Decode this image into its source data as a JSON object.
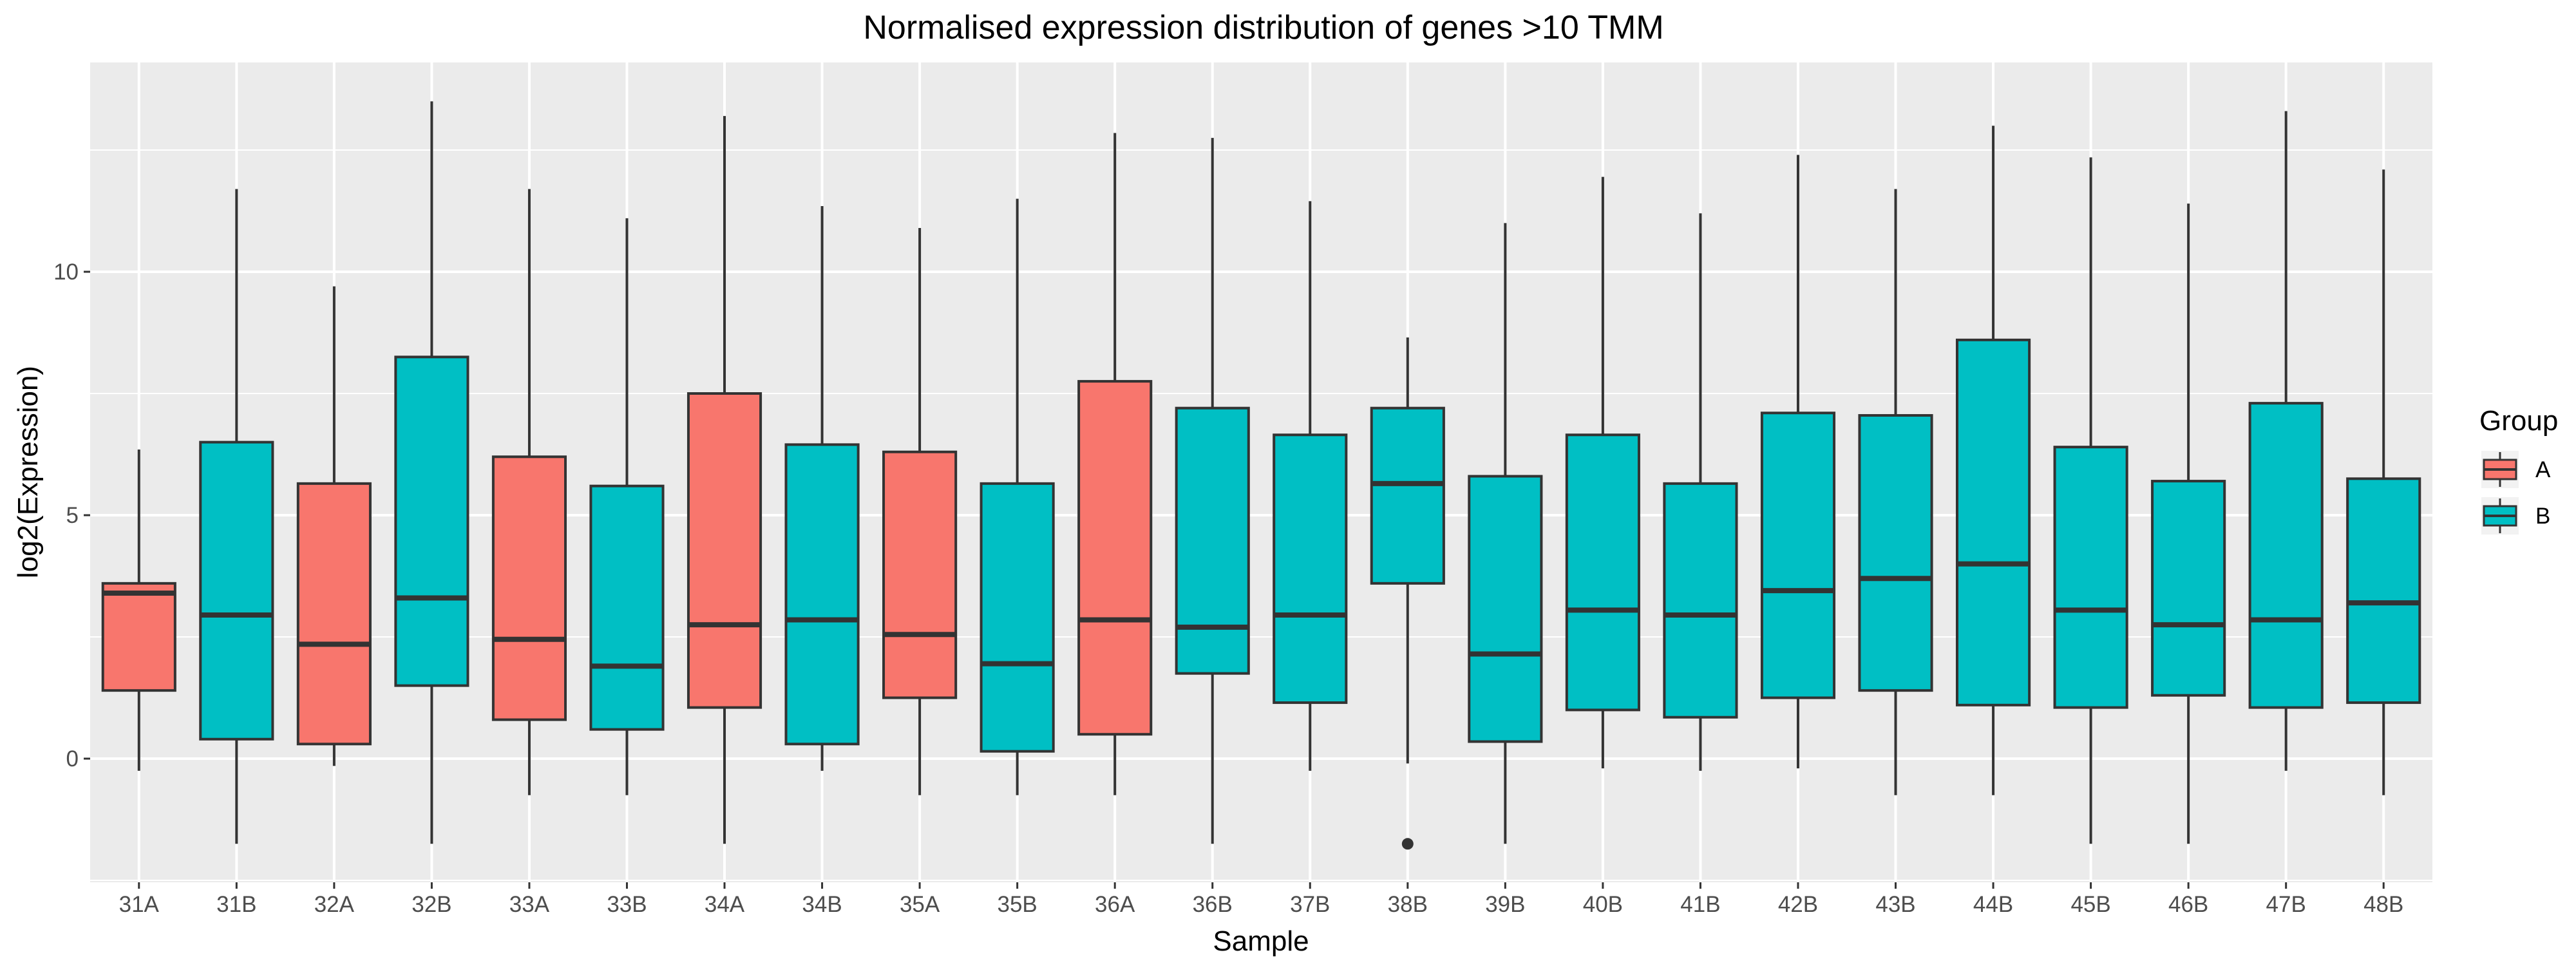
{
  "chart_data": {
    "type": "boxplot",
    "title": "Normalised expression distribution of genes >10 TMM",
    "xlabel": "Sample",
    "ylabel": "log2(Expression)",
    "ylim": [
      -2.5,
      14.2
    ],
    "yticks": [
      0,
      5,
      10
    ],
    "grid": true,
    "legend": {
      "title": "Group",
      "position": "right",
      "entries": [
        {
          "label": "A",
          "color": "#F8766D"
        },
        {
          "label": "B",
          "color": "#00BFC4"
        }
      ]
    },
    "colors": {
      "A": "#F8766D",
      "B": "#00BFC4",
      "panel": "#EBEBEB",
      "grid": "#FFFFFF",
      "outline": "#333333"
    },
    "boxes": [
      {
        "sample": "31A",
        "group": "A",
        "whisker_low": -0.25,
        "q1": 1.4,
        "median": 3.4,
        "q3": 3.6,
        "whisker_high": 6.35,
        "outliers": []
      },
      {
        "sample": "31B",
        "group": "B",
        "whisker_low": -1.75,
        "q1": 0.4,
        "median": 2.95,
        "q3": 6.5,
        "whisker_high": 11.7,
        "outliers": []
      },
      {
        "sample": "32A",
        "group": "A",
        "whisker_low": -0.15,
        "q1": 0.3,
        "median": 2.35,
        "q3": 5.65,
        "whisker_high": 9.7,
        "outliers": []
      },
      {
        "sample": "32B",
        "group": "B",
        "whisker_low": -1.75,
        "q1": 1.5,
        "median": 3.3,
        "q3": 8.25,
        "whisker_high": 13.5,
        "outliers": []
      },
      {
        "sample": "33A",
        "group": "A",
        "whisker_low": -0.75,
        "q1": 0.8,
        "median": 2.45,
        "q3": 6.2,
        "whisker_high": 11.7,
        "outliers": []
      },
      {
        "sample": "33B",
        "group": "B",
        "whisker_low": -0.75,
        "q1": 0.6,
        "median": 1.9,
        "q3": 5.6,
        "whisker_high": 11.1,
        "outliers": []
      },
      {
        "sample": "34A",
        "group": "A",
        "whisker_low": -1.75,
        "q1": 1.05,
        "median": 2.75,
        "q3": 7.5,
        "whisker_high": 13.2,
        "outliers": []
      },
      {
        "sample": "34B",
        "group": "B",
        "whisker_low": -0.25,
        "q1": 0.3,
        "median": 2.85,
        "q3": 6.45,
        "whisker_high": 11.35,
        "outliers": []
      },
      {
        "sample": "35A",
        "group": "A",
        "whisker_low": -0.75,
        "q1": 1.25,
        "median": 2.55,
        "q3": 6.3,
        "whisker_high": 10.9,
        "outliers": []
      },
      {
        "sample": "35B",
        "group": "B",
        "whisker_low": -0.75,
        "q1": 0.15,
        "median": 1.95,
        "q3": 5.65,
        "whisker_high": 11.5,
        "outliers": []
      },
      {
        "sample": "36A",
        "group": "A",
        "whisker_low": -0.75,
        "q1": 0.5,
        "median": 2.85,
        "q3": 7.75,
        "whisker_high": 12.85,
        "outliers": []
      },
      {
        "sample": "36B",
        "group": "B",
        "whisker_low": -1.75,
        "q1": 1.75,
        "median": 2.7,
        "q3": 7.2,
        "whisker_high": 12.75,
        "outliers": []
      },
      {
        "sample": "37B",
        "group": "B",
        "whisker_low": -0.25,
        "q1": 1.15,
        "median": 2.95,
        "q3": 6.65,
        "whisker_high": 11.45,
        "outliers": []
      },
      {
        "sample": "38B",
        "group": "B",
        "whisker_low": -0.1,
        "q1": 3.6,
        "median": 5.65,
        "q3": 7.2,
        "whisker_high": 8.65,
        "outliers": [
          -1.75
        ]
      },
      {
        "sample": "39B",
        "group": "B",
        "whisker_low": -1.75,
        "q1": 0.35,
        "median": 2.15,
        "q3": 5.8,
        "whisker_high": 11.0,
        "outliers": []
      },
      {
        "sample": "40B",
        "group": "B",
        "whisker_low": -0.2,
        "q1": 1.0,
        "median": 3.05,
        "q3": 6.65,
        "whisker_high": 11.95,
        "outliers": []
      },
      {
        "sample": "41B",
        "group": "B",
        "whisker_low": -0.25,
        "q1": 0.85,
        "median": 2.95,
        "q3": 5.65,
        "whisker_high": 11.2,
        "outliers": []
      },
      {
        "sample": "42B",
        "group": "B",
        "whisker_low": -0.2,
        "q1": 1.25,
        "median": 3.45,
        "q3": 7.1,
        "whisker_high": 12.4,
        "outliers": []
      },
      {
        "sample": "43B",
        "group": "B",
        "whisker_low": -0.75,
        "q1": 1.4,
        "median": 3.7,
        "q3": 7.05,
        "whisker_high": 11.7,
        "outliers": []
      },
      {
        "sample": "44B",
        "group": "B",
        "whisker_low": -0.75,
        "q1": 1.1,
        "median": 4.0,
        "q3": 8.6,
        "whisker_high": 13.0,
        "outliers": []
      },
      {
        "sample": "45B",
        "group": "B",
        "whisker_low": -1.75,
        "q1": 1.05,
        "median": 3.05,
        "q3": 6.4,
        "whisker_high": 12.35,
        "outliers": []
      },
      {
        "sample": "46B",
        "group": "B",
        "whisker_low": -1.75,
        "q1": 1.3,
        "median": 2.75,
        "q3": 5.7,
        "whisker_high": 11.4,
        "outliers": []
      },
      {
        "sample": "47B",
        "group": "B",
        "whisker_low": -0.25,
        "q1": 1.05,
        "median": 2.85,
        "q3": 7.3,
        "whisker_high": 13.3,
        "outliers": []
      },
      {
        "sample": "48B",
        "group": "B",
        "whisker_low": -0.75,
        "q1": 1.15,
        "median": 3.2,
        "q3": 5.75,
        "whisker_high": 12.1,
        "outliers": []
      }
    ]
  }
}
